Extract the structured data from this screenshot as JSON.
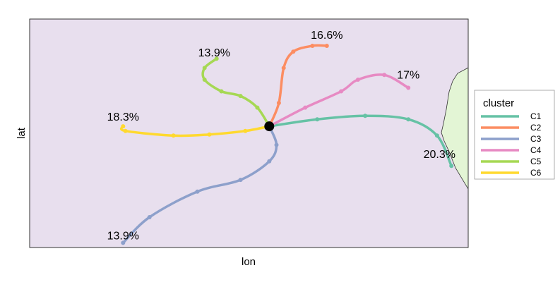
{
  "chart_data": {
    "type": "line",
    "xlabel": "lon",
    "ylabel": "lat",
    "origin": [
      0,
      0
    ],
    "xlim": [
      -100,
      83
    ],
    "ylim": [
      -52,
      46
    ],
    "legend": {
      "title": "cluster",
      "position": "right"
    },
    "background_color": "#e8dfee",
    "land_color": "#e3f5d5",
    "series": [
      {
        "name": "C1",
        "color": "#66c2a5",
        "label": "20.3%",
        "label_at": [
          71,
          -12
        ],
        "points": [
          [
            0,
            0
          ],
          [
            20,
            3
          ],
          [
            40,
            4.5
          ],
          [
            58,
            3
          ],
          [
            70,
            -4
          ],
          [
            76,
            -17
          ]
        ]
      },
      {
        "name": "C2",
        "color": "#fc8d62",
        "label": "16.6%",
        "label_at": [
          24,
          39
        ],
        "points": [
          [
            0,
            0
          ],
          [
            4,
            10
          ],
          [
            6,
            25
          ],
          [
            10,
            32
          ],
          [
            18,
            34.5
          ],
          [
            24,
            34.5
          ]
        ]
      },
      {
        "name": "C3",
        "color": "#8da0cb",
        "label": "13.9%",
        "label_at": [
          -61,
          -47
        ],
        "points": [
          [
            0,
            0
          ],
          [
            3,
            -8
          ],
          [
            0,
            -15
          ],
          [
            -12,
            -23
          ],
          [
            -30,
            -28
          ],
          [
            -50,
            -39
          ],
          [
            -61,
            -50
          ]
        ]
      },
      {
        "name": "C4",
        "color": "#e78ac3",
        "label": "17%",
        "label_at": [
          58,
          22
        ],
        "points": [
          [
            0,
            0
          ],
          [
            15,
            8
          ],
          [
            30,
            15
          ],
          [
            37,
            20
          ],
          [
            48,
            22
          ],
          [
            58,
            16.5
          ]
        ]
      },
      {
        "name": "C5",
        "color": "#a6d854",
        "label": "13.9%",
        "label_at": [
          -23,
          31.5
        ],
        "points": [
          [
            0,
            0
          ],
          [
            -5,
            8
          ],
          [
            -12,
            13
          ],
          [
            -20,
            15
          ],
          [
            -27,
            20
          ],
          [
            -27,
            25
          ],
          [
            -22,
            29
          ]
        ]
      },
      {
        "name": "C6",
        "color": "#ffd92f",
        "label": "18.3%",
        "label_at": [
          -61,
          4
        ],
        "points": [
          [
            0,
            0
          ],
          [
            -10,
            -2
          ],
          [
            -25,
            -3.5
          ],
          [
            -40,
            -4
          ],
          [
            -60,
            -2
          ],
          [
            -61,
            0
          ]
        ]
      }
    ]
  }
}
